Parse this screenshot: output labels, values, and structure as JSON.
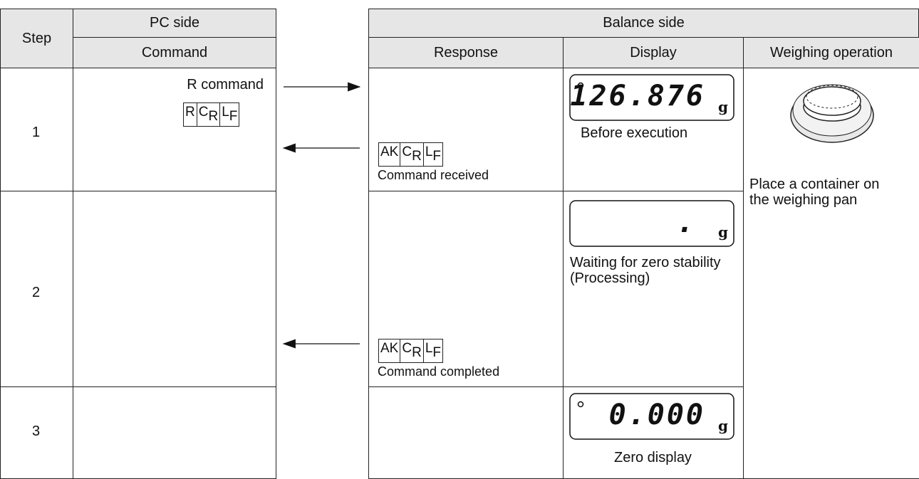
{
  "header": {
    "step": "Step",
    "pc_side": "PC side",
    "command": "Command",
    "balance_side": "Balance side",
    "response": "Response",
    "display": "Display",
    "weighing_operation": "Weighing operation"
  },
  "rows": [
    {
      "step": "1",
      "command": "R command",
      "command_code": [
        {
          "text": "R"
        },
        {
          "text": "C",
          "sub": "R"
        },
        {
          "text": "L",
          "sub": "F"
        }
      ],
      "response_code": [
        {
          "text": "AK"
        },
        {
          "text": "C",
          "sub": "R"
        },
        {
          "text": "L",
          "sub": "F"
        }
      ],
      "response": "Command received",
      "display": "126.876",
      "unit": "g",
      "display_caption": "Before execution"
    },
    {
      "step": "2",
      "response_code": [
        {
          "text": "AK"
        },
        {
          "text": "C",
          "sub": "R"
        },
        {
          "text": "L",
          "sub": "F"
        }
      ],
      "response": "Command completed",
      "display": ".",
      "unit": "g",
      "display_caption": "Waiting for zero stability (Processing)"
    },
    {
      "step": "3",
      "display": "0.000",
      "unit": "g",
      "display_caption": "Zero display"
    }
  ],
  "weighing_operation": "Place a container on the weighing pan"
}
